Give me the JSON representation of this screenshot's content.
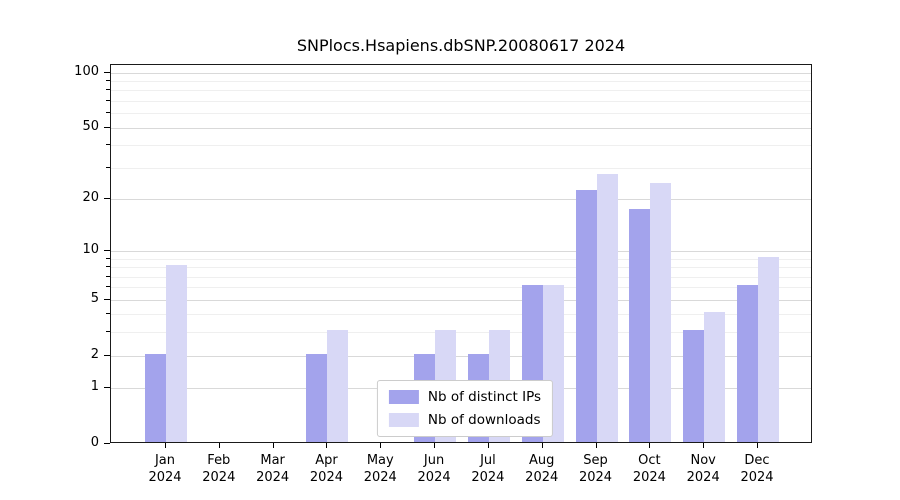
{
  "chart_data": {
    "type": "bar",
    "title": "SNPlocs.Hsapiens.dbSNP.20080617 2024",
    "categories": [
      "Jan",
      "Feb",
      "Mar",
      "Apr",
      "May",
      "Jun",
      "Jul",
      "Aug",
      "Sep",
      "Oct",
      "Nov",
      "Dec"
    ],
    "year_label": "2024",
    "series": [
      {
        "name": "Nb of distinct IPs",
        "color": "#a3a3ec",
        "values": [
          2,
          0,
          0,
          2,
          0,
          2,
          2,
          6,
          22,
          17,
          3,
          6
        ]
      },
      {
        "name": "Nb of downloads",
        "color": "#d8d8f6",
        "values": [
          8,
          0,
          0,
          3,
          0,
          3,
          3,
          6,
          27,
          24,
          4,
          9
        ]
      }
    ],
    "yscale": "log1p",
    "ylim": [
      0,
      110
    ],
    "yticks": [
      0,
      1,
      2,
      5,
      10,
      20,
      50,
      100
    ],
    "yticks_minor": [
      3,
      4,
      6,
      7,
      8,
      9,
      30,
      40,
      60,
      70,
      80,
      90
    ],
    "grid": true,
    "legend_position": "bottom-center"
  },
  "colors": {
    "background": "#ffffff",
    "axis": "#000000",
    "text": "#000000",
    "grid_major": "#d9d9d9",
    "grid_minor": "#efefef",
    "legend_border": "#cccccc"
  }
}
